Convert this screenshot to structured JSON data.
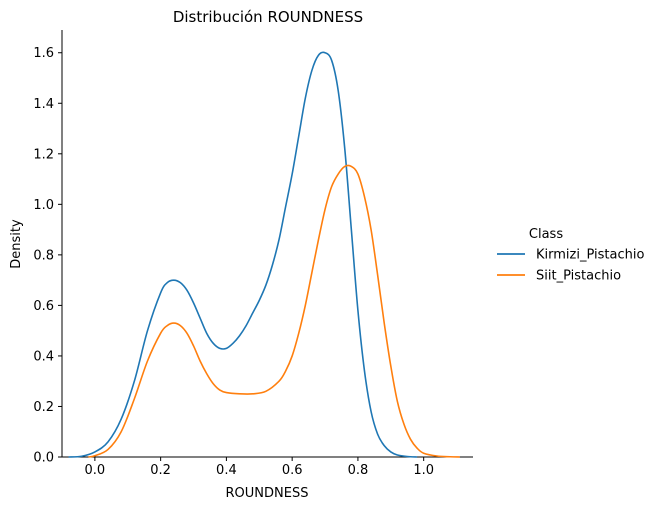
{
  "chart_data": {
    "type": "line",
    "title": "Distribución ROUNDNESS",
    "xlabel": "ROUNDNESS",
    "ylabel": "Density",
    "xlim": [
      -0.1,
      1.15
    ],
    "ylim": [
      0,
      1.69
    ],
    "xticks": [
      0.0,
      0.2,
      0.4,
      0.6,
      0.8,
      1.0
    ],
    "yticks": [
      0.0,
      0.2,
      0.4,
      0.6,
      0.8,
      1.0,
      1.2,
      1.4,
      1.6
    ],
    "xtick_labels": [
      "0.0",
      "0.2",
      "0.4",
      "0.6",
      "0.8",
      "1.0"
    ],
    "ytick_labels": [
      "0.0",
      "0.2",
      "0.4",
      "0.6",
      "0.8",
      "1.0",
      "1.2",
      "1.4",
      "1.6"
    ],
    "grid": false,
    "legend": {
      "title": "Class",
      "placement": "right-outside"
    },
    "series": [
      {
        "name": "Kirmizi_Pistachio",
        "color": "#1f77b4",
        "x": [
          -0.08,
          -0.04,
          0.0,
          0.04,
          0.08,
          0.12,
          0.16,
          0.2,
          0.22,
          0.24,
          0.26,
          0.28,
          0.3,
          0.32,
          0.34,
          0.36,
          0.38,
          0.4,
          0.42,
          0.44,
          0.46,
          0.48,
          0.5,
          0.52,
          0.54,
          0.56,
          0.58,
          0.6,
          0.62,
          0.64,
          0.66,
          0.68,
          0.7,
          0.72,
          0.74,
          0.76,
          0.78,
          0.8,
          0.82,
          0.84,
          0.86,
          0.88,
          0.9,
          0.92,
          0.95,
          0.98
        ],
        "y": [
          0.0,
          0.003,
          0.02,
          0.06,
          0.15,
          0.3,
          0.5,
          0.65,
          0.69,
          0.7,
          0.69,
          0.66,
          0.61,
          0.55,
          0.49,
          0.45,
          0.43,
          0.43,
          0.45,
          0.48,
          0.52,
          0.57,
          0.62,
          0.68,
          0.76,
          0.86,
          0.99,
          1.12,
          1.27,
          1.42,
          1.53,
          1.59,
          1.6,
          1.57,
          1.45,
          1.22,
          0.9,
          0.58,
          0.34,
          0.18,
          0.09,
          0.045,
          0.02,
          0.008,
          0.002,
          0.0
        ]
      },
      {
        "name": "Siit_Pistachio",
        "color": "#ff7f0e",
        "x": [
          -0.02,
          0.0,
          0.04,
          0.08,
          0.12,
          0.16,
          0.2,
          0.22,
          0.24,
          0.26,
          0.28,
          0.3,
          0.32,
          0.34,
          0.36,
          0.38,
          0.4,
          0.44,
          0.48,
          0.52,
          0.56,
          0.58,
          0.6,
          0.62,
          0.64,
          0.66,
          0.68,
          0.7,
          0.72,
          0.74,
          0.76,
          0.78,
          0.8,
          0.82,
          0.84,
          0.86,
          0.88,
          0.9,
          0.92,
          0.94,
          0.96,
          0.98,
          1.0,
          1.04,
          1.08,
          1.11
        ],
        "y": [
          0.0,
          0.005,
          0.03,
          0.1,
          0.23,
          0.38,
          0.49,
          0.52,
          0.53,
          0.52,
          0.49,
          0.44,
          0.38,
          0.33,
          0.29,
          0.265,
          0.255,
          0.25,
          0.25,
          0.26,
          0.3,
          0.34,
          0.4,
          0.49,
          0.6,
          0.73,
          0.86,
          0.98,
          1.07,
          1.12,
          1.15,
          1.15,
          1.12,
          1.03,
          0.9,
          0.72,
          0.53,
          0.36,
          0.22,
          0.13,
          0.07,
          0.035,
          0.015,
          0.004,
          0.001,
          0.0
        ]
      }
    ]
  }
}
